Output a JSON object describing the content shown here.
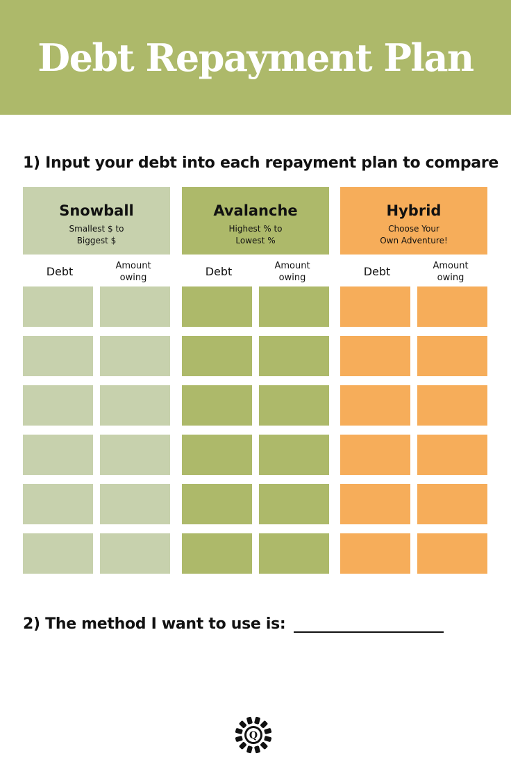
{
  "title": "Debt Repayment Plan",
  "step1": "1) Input your debt into each repayment plan to compare",
  "step2": "2) The method I want to use is:",
  "columns": [
    {
      "name": "Snowball",
      "line1": "Smallest $ to",
      "line2": "Biggest $",
      "color": "#c7d1ad"
    },
    {
      "name": "Avalanche",
      "line1": "Highest % to",
      "line2": "Lowest %",
      "color": "#adb96a"
    },
    {
      "name": "Hybrid",
      "line1": "Choose Your",
      "line2": "Own Adventure!",
      "color": "#f6ad5a"
    }
  ],
  "subheaders": {
    "debt": "Debt",
    "amount1": "Amount",
    "amount2": "owing"
  },
  "rows": 6,
  "logo": {
    "letter": "Q",
    "icon": "sunburst-logo"
  }
}
